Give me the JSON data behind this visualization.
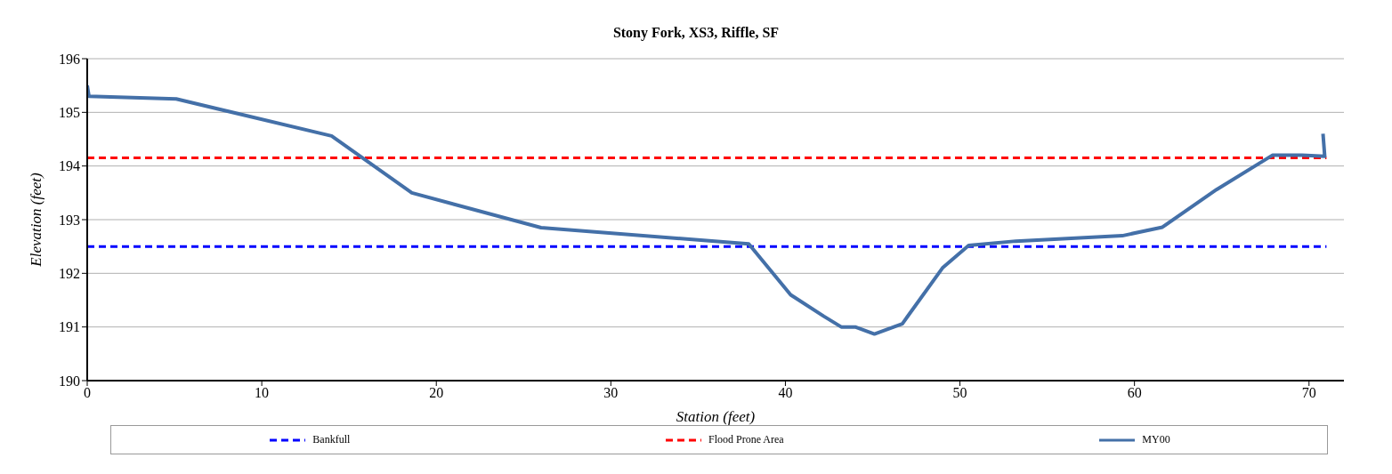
{
  "chart_data": {
    "type": "line",
    "title": "Stony Fork, XS3, Riffle, SF",
    "xlabel": "Station (feet)",
    "ylabel": "Elevation (feet)",
    "xlim": [
      0,
      72
    ],
    "xticks": [
      0,
      10,
      20,
      30,
      40,
      50,
      60,
      70
    ],
    "ylim": [
      190,
      196
    ],
    "yticks": [
      190,
      191,
      192,
      193,
      194,
      195,
      196
    ],
    "grid": "y",
    "legend": "bottom",
    "marker": "none",
    "series": [
      {
        "name": "Bankfull",
        "color": "#0000ff",
        "line_style": "dashed",
        "x": [
          0,
          71
        ],
        "values": [
          192.5,
          192.5
        ]
      },
      {
        "name": "Flood Prone Area",
        "color": "#ff0000",
        "line_style": "dashed",
        "x": [
          0,
          71
        ],
        "values": [
          194.15,
          194.15
        ]
      },
      {
        "name": "MY00",
        "color": "#4470a8",
        "line_style": "solid",
        "x": [
          0,
          0.1,
          5.1,
          14.0,
          18.6,
          26.0,
          37.9,
          40.3,
          42.2,
          43.2,
          44.0,
          45.1,
          46.7,
          49.0,
          50.5,
          53.2,
          59.3,
          61.6,
          64.7,
          67.9,
          69.6,
          70.9,
          70.8
        ],
        "values": [
          195.5,
          195.3,
          195.25,
          194.56,
          193.5,
          192.85,
          192.55,
          191.6,
          191.2,
          191.0,
          191.0,
          190.87,
          191.06,
          192.1,
          192.52,
          192.6,
          192.7,
          192.86,
          193.56,
          194.2,
          194.2,
          194.18,
          194.6
        ]
      }
    ]
  }
}
